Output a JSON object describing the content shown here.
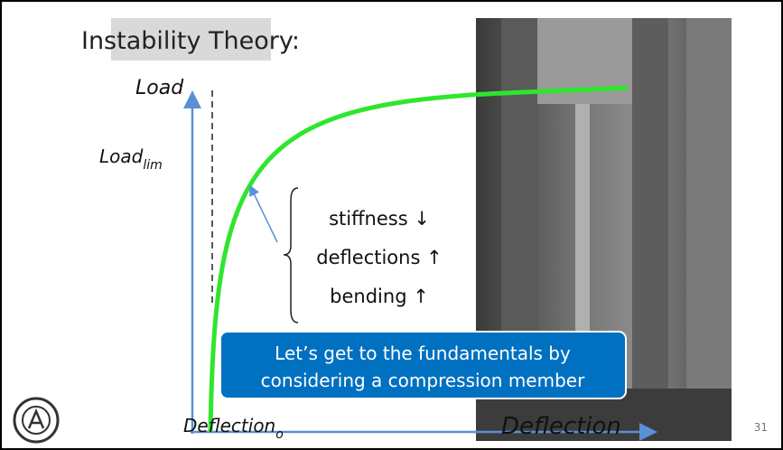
{
  "title": "Instability Theory:",
  "y_axis": {
    "label": "Load",
    "limit": {
      "text": "Load",
      "subscript": "lim"
    }
  },
  "x_axis": {
    "label": "Deflection",
    "origin": {
      "text": "Deflection",
      "subscript": "o"
    }
  },
  "effects": [
    "stiffness ↓",
    "deflections ↑",
    "bending ↑"
  ],
  "callout": [
    "Let’s get to the fundamentals by",
    "considering a compression member"
  ],
  "page_number": "31"
}
